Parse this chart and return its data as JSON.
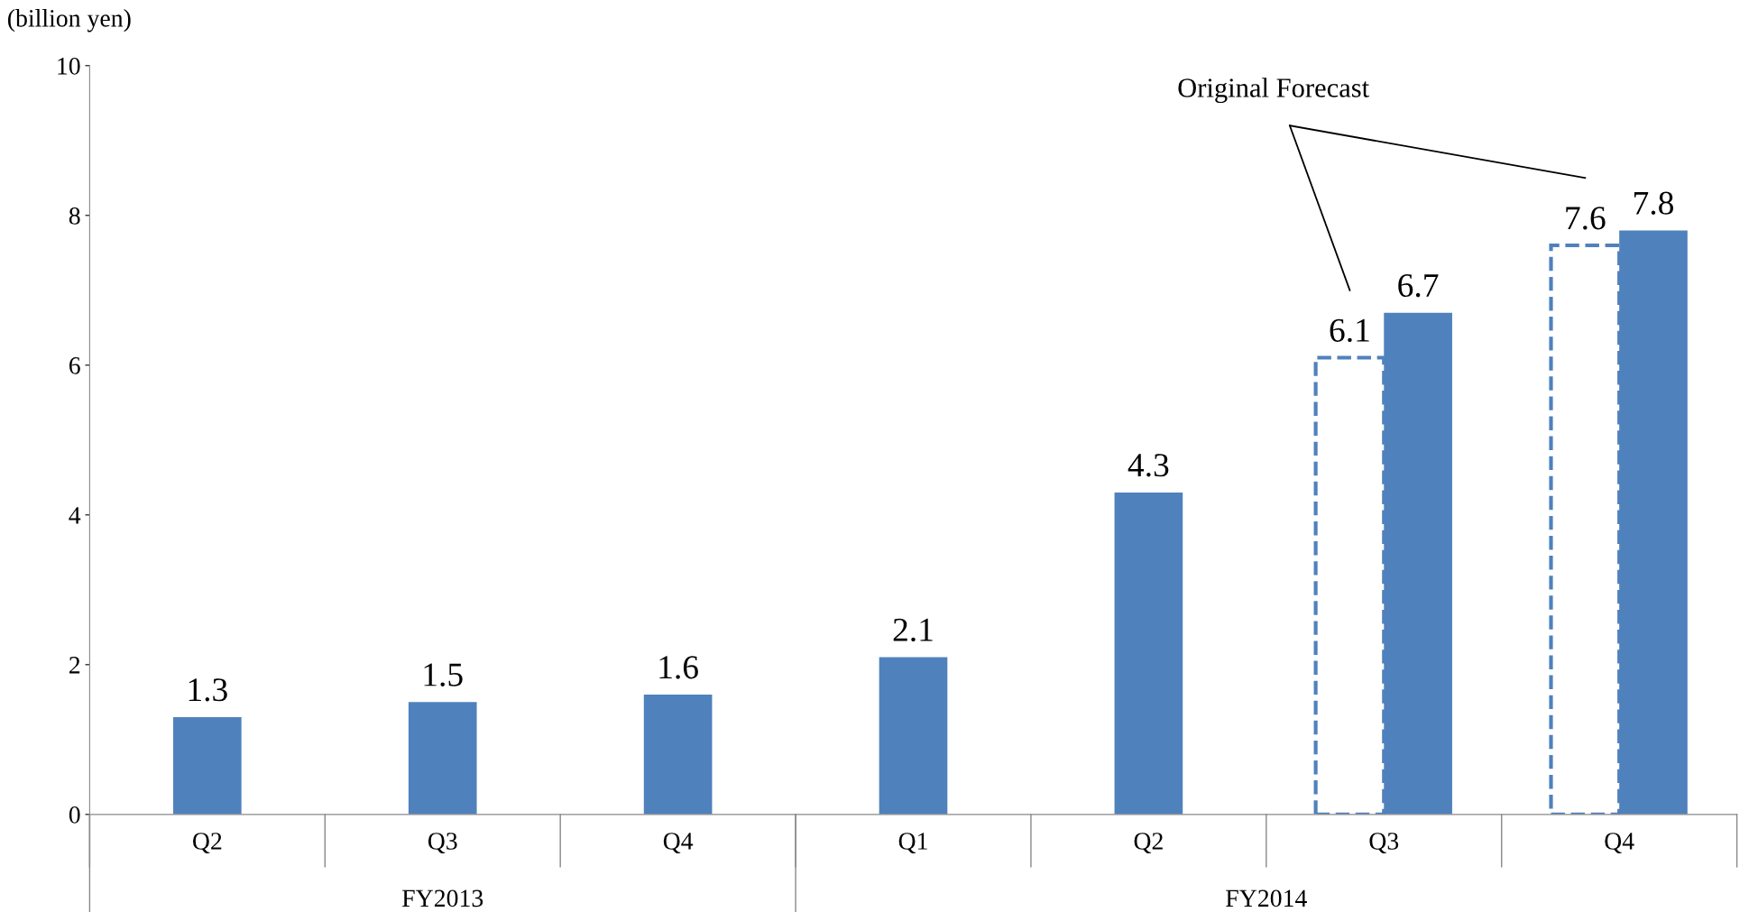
{
  "chart_data": {
    "type": "bar",
    "ylabel": "(billion yen)",
    "categories": [
      "Q2",
      "Q3",
      "Q4",
      "Q1",
      "Q2",
      "Q3",
      "Q4"
    ],
    "series": [
      {
        "color": "#4f81bd",
        "values": [
          null,
          null,
          null,
          null,
          null,
          6.1,
          7.6
        ],
        "line_style": "dashed"
      },
      {
        "color": "#4f81bd",
        "values": [
          1.3,
          1.5,
          1.6,
          2.1,
          4.3,
          6.7,
          7.8
        ]
      }
    ],
    "ylim": [
      0,
      10
    ],
    "yticks": [
      0,
      2,
      4,
      6,
      8,
      10
    ],
    "data_labels": true,
    "grid": false,
    "annotations": [
      "Original Forecast",
      "FY2013",
      "FY2014"
    ]
  }
}
